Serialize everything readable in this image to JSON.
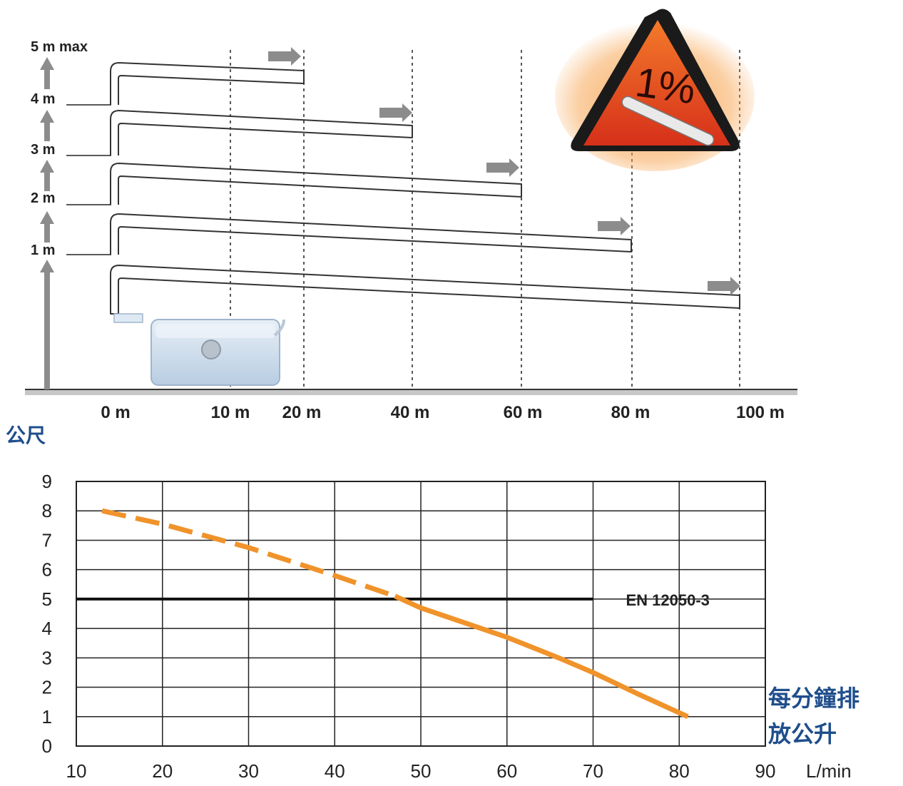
{
  "diagram": {
    "height_labels": [
      "5 m max",
      "4 m",
      "3 m",
      "2 m",
      "1 m"
    ],
    "distance_labels": [
      "0 m",
      "10 m",
      "20 m",
      "40 m",
      "60 m",
      "80 m",
      "100 m"
    ],
    "slope_label": "1%",
    "unit_label": "公尺",
    "pipe_routes": [
      {
        "height_m": 5,
        "distance_m": 20
      },
      {
        "height_m": 4,
        "distance_m": 40
      },
      {
        "height_m": 3,
        "distance_m": 60
      },
      {
        "height_m": 2,
        "distance_m": 80
      },
      {
        "height_m": 1,
        "distance_m": 100
      }
    ]
  },
  "chart_data": {
    "type": "line",
    "x_ticks": [
      "10",
      "20",
      "30",
      "40",
      "50",
      "60",
      "70",
      "80",
      "90"
    ],
    "y_ticks": [
      "0",
      "1",
      "2",
      "3",
      "4",
      "5",
      "6",
      "7",
      "8",
      "9"
    ],
    "x_unit": "L/min",
    "y_axis_label": "公尺",
    "x_axis_label_line1": "每分鐘排",
    "x_axis_label_line2": "放公升",
    "xlim": [
      10,
      90
    ],
    "ylim": [
      0,
      9
    ],
    "grid": true,
    "reference_line": {
      "label": "EN 12050-3",
      "y": 5,
      "x_start": 10,
      "x_end": 70
    },
    "series": [
      {
        "style": "dashed",
        "x": [
          13,
          20,
          30,
          40,
          47
        ],
        "y": [
          8.0,
          7.55,
          6.75,
          5.8,
          5.1
        ]
      },
      {
        "style": "solid",
        "x": [
          47,
          50,
          55,
          60,
          66,
          70,
          75,
          81
        ],
        "y": [
          5.1,
          4.7,
          4.2,
          3.7,
          3.0,
          2.5,
          1.8,
          1.0
        ]
      }
    ],
    "colors": {
      "curve": "#f0932b",
      "reference": "#111111",
      "grid": "#222222"
    }
  },
  "colors": {
    "arrow": "#8c8c8c",
    "warning_fill": "#e8461c",
    "warning_glow": "#f7a14a",
    "label_blue": "#1f4e8c"
  }
}
